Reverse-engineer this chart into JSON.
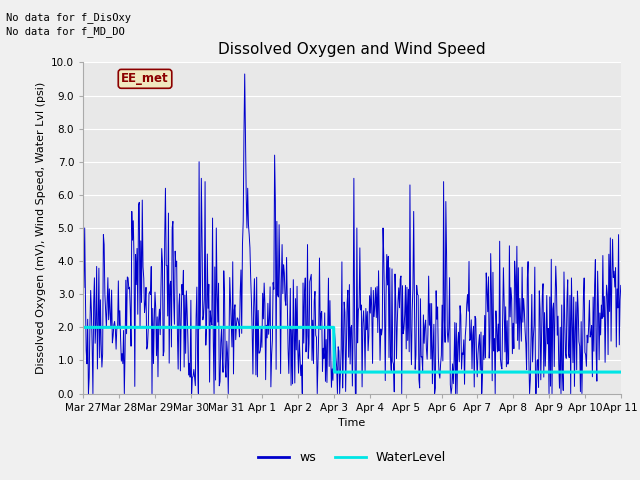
{
  "title": "Dissolved Oxygen and Wind Speed",
  "ylabel": "Dissolved Oxygen (mV), Wind Speed, Water Lvl (psi)",
  "xlabel": "Time",
  "text_no_data_1": "No data for f_DisOxy",
  "text_no_data_2": "No data for f_MD_DO",
  "legend_label_box": "EE_met",
  "legend_ws": "ws",
  "legend_wl": "WaterLevel",
  "ylim": [
    0.0,
    10.0
  ],
  "yticks": [
    0.0,
    1.0,
    2.0,
    3.0,
    4.0,
    5.0,
    6.0,
    7.0,
    8.0,
    9.0,
    10.0
  ],
  "xtick_labels": [
    "Mar 27",
    "Mar 28",
    "Mar 29",
    "Mar 30",
    "Mar 31",
    "Apr 1",
    "Apr 2",
    "Apr 3",
    "Apr 4",
    "Apr 5",
    "Apr 6",
    "Apr 7",
    "Apr 8",
    "Apr 9",
    "Apr 10",
    "Apr 11"
  ],
  "ws_color": "#0000cc",
  "wl_color": "#00e5e5",
  "bg_color": "#e8e8e8",
  "plot_bg_color": "#e8e8e8",
  "grid_color": "white",
  "title_fontsize": 11,
  "label_fontsize": 8,
  "tick_fontsize": 7.5,
  "annot_fontsize": 7.5
}
